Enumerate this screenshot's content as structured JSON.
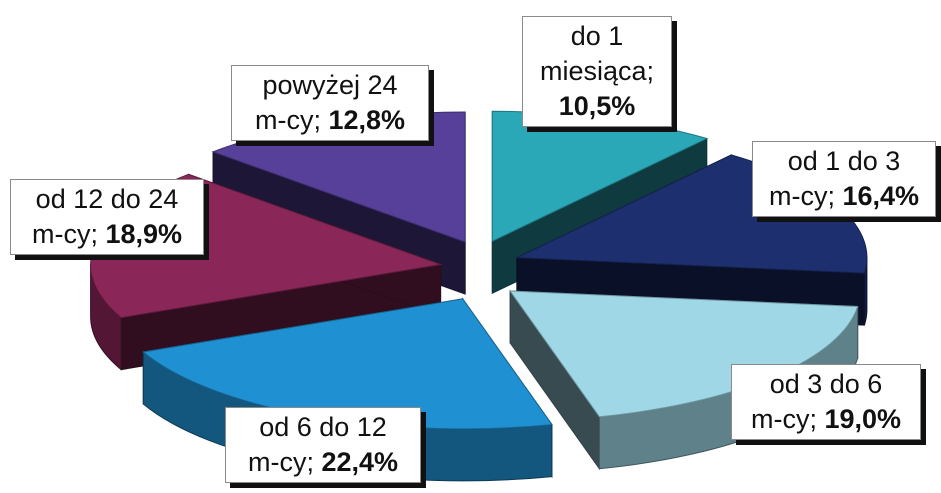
{
  "chart_data": {
    "type": "pie",
    "style": "3d-exploded",
    "categories": [
      "do 1 miesiąca",
      "od 1 do 3 m-cy",
      "od 3 do 6 m-cy",
      "od 6 do 12 m-cy",
      "od 12 do 24 m-cy",
      "powyżej 24 m-cy"
    ],
    "values": [
      10.5,
      16.4,
      19.0,
      22.4,
      18.9,
      12.8
    ],
    "unit": "%",
    "colors": [
      "#2aa8b8",
      "#1d2f6f",
      "#9fd7e6",
      "#1f90d2",
      "#8a2758",
      "#56409a"
    ],
    "labels": [
      {
        "line1": "do 1",
        "line2": "miesiąca;",
        "value": "10,5%"
      },
      {
        "line1": "od 1 do 3",
        "line2": "m-cy;",
        "value": "16,4%"
      },
      {
        "line1": "od 3 do 6",
        "line2": "m-cy;",
        "value": "19,0%"
      },
      {
        "line1": "od 6 do 12",
        "line2": "m-cy;",
        "value": "22,4%"
      },
      {
        "line1": "od 12 do 24",
        "line2": "m-cy;",
        "value": "18,9%"
      },
      {
        "line1": "powyżej 24",
        "line2": "m-cy;",
        "value": "12,8%"
      }
    ],
    "legend": "none"
  }
}
